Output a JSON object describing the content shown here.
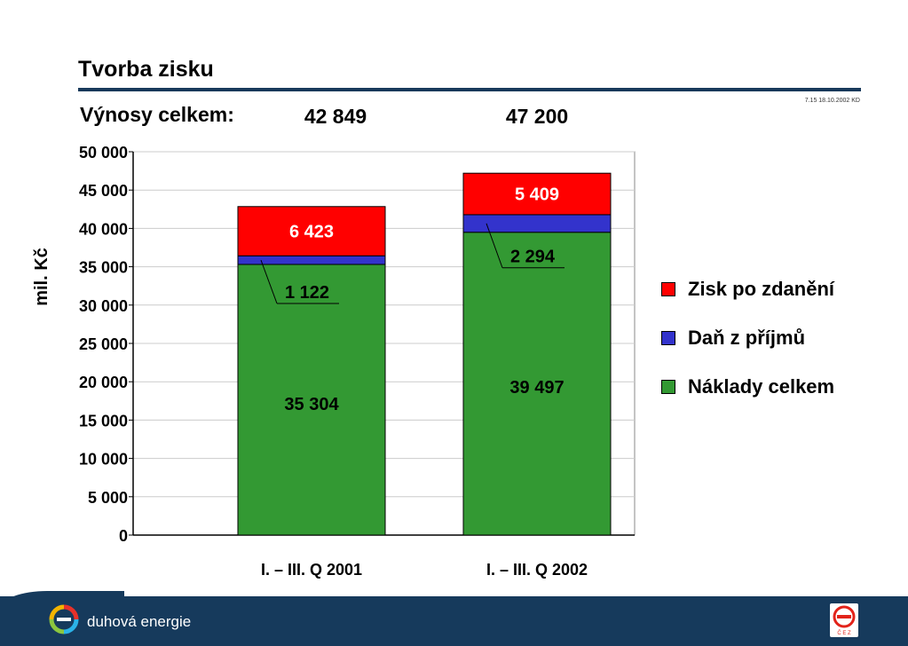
{
  "title": "Tvorba zisku",
  "stamp": "7.15 18.10.2002 KD",
  "revenue": {
    "label": "Výnosy celkem:",
    "values": [
      "42 849",
      "47 200"
    ]
  },
  "legend": [
    {
      "label": "Zisk po zdanění",
      "color": "#ff0000"
    },
    {
      "label": "Daň z příjmů",
      "color": "#3333cc"
    },
    {
      "label": "Náklady celkem",
      "color": "#339933"
    }
  ],
  "footer": {
    "brand_text": "duhová energie",
    "cez_letters": "Č E Z"
  },
  "colors": {
    "title_rule": "#17395a",
    "footer_bg": "#163a5c",
    "profit": "#ff0000",
    "tax": "#3333cc",
    "costs": "#339933"
  },
  "chart_data": {
    "type": "bar",
    "stacked": true,
    "categories": [
      "I. – III. Q 2001",
      "I. – III. Q 2002"
    ],
    "series": [
      {
        "name": "Náklady celkem",
        "values": [
          35304,
          39497
        ],
        "labels": [
          "35 304",
          "39 497"
        ]
      },
      {
        "name": "Daň z příjmů",
        "values": [
          1122,
          2294
        ],
        "labels": [
          "1 122",
          "2 294"
        ]
      },
      {
        "name": "Zisk po zdanění",
        "values": [
          6423,
          5409
        ],
        "labels": [
          "6 423",
          "5 409"
        ]
      }
    ],
    "ylabel": "mil. Kč",
    "ylim": [
      0,
      50000
    ],
    "yticks": [
      0,
      5000,
      10000,
      15000,
      20000,
      25000,
      30000,
      35000,
      40000,
      45000,
      50000
    ],
    "ytick_labels": [
      "0",
      "5 000",
      "10 000",
      "15 000",
      "20 000",
      "25 000",
      "30 000",
      "35 000",
      "40 000",
      "45 000",
      "50 000"
    ],
    "grid": true,
    "legend_position": "right"
  }
}
